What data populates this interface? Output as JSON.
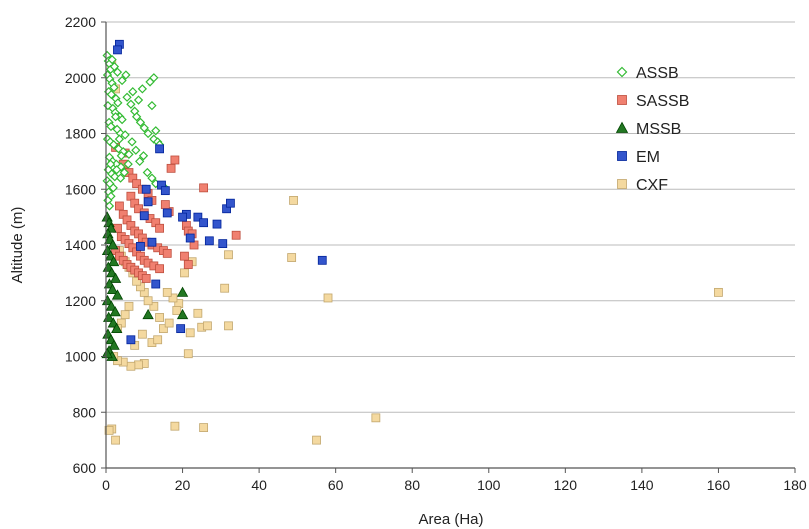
{
  "chart_data": {
    "type": "scatter",
    "title": "",
    "xlabel": "Area (Ha)",
    "ylabel": "Altitude (m)",
    "xlim": [
      0,
      180
    ],
    "ylim": [
      600,
      2200
    ],
    "xticks": [
      0,
      20,
      40,
      60,
      80,
      100,
      120,
      140,
      160,
      180
    ],
    "yticks": [
      600,
      800,
      1000,
      1200,
      1400,
      1600,
      1800,
      2000,
      2200
    ],
    "grid": "horizontal",
    "legend_position": "top-right",
    "series": [
      {
        "name": "ASSB",
        "marker": "diamond-open",
        "color": "#33bb33",
        "points": [
          [
            0.3,
            2080
          ],
          [
            0.6,
            2060
          ],
          [
            0.9,
            2050
          ],
          [
            1.2,
            2030
          ],
          [
            0.4,
            2010
          ],
          [
            1.0,
            1995
          ],
          [
            1.6,
            1980
          ],
          [
            2.1,
            1965
          ],
          [
            0.7,
            1950
          ],
          [
            1.4,
            1940
          ],
          [
            2.6,
            1925
          ],
          [
            3.1,
            1910
          ],
          [
            0.5,
            1900
          ],
          [
            1.8,
            1890
          ],
          [
            2.4,
            1875
          ],
          [
            3.6,
            1860
          ],
          [
            4.2,
            1850
          ],
          [
            0.8,
            1840
          ],
          [
            1.3,
            1825
          ],
          [
            2.9,
            1815
          ],
          [
            3.8,
            1800
          ],
          [
            5.0,
            1795
          ],
          [
            0.4,
            1780
          ],
          [
            1.1,
            1770
          ],
          [
            2.0,
            1760
          ],
          [
            3.3,
            1745
          ],
          [
            4.5,
            1735
          ],
          [
            6.0,
            1725
          ],
          [
            0.9,
            1715
          ],
          [
            1.7,
            1700
          ],
          [
            2.7,
            1690
          ],
          [
            3.9,
            1680
          ],
          [
            0.6,
            1670
          ],
          [
            1.5,
            1655
          ],
          [
            2.3,
            1645
          ],
          [
            0.3,
            1630
          ],
          [
            1.0,
            1620
          ],
          [
            1.9,
            1605
          ],
          [
            0.7,
            1590
          ],
          [
            1.3,
            1575
          ],
          [
            0.5,
            1560
          ],
          [
            0.9,
            1540
          ],
          [
            5.5,
            1930
          ],
          [
            6.5,
            1905
          ],
          [
            7.5,
            1880
          ],
          [
            8.0,
            1860
          ],
          [
            9.0,
            1840
          ],
          [
            10.0,
            1820
          ],
          [
            11.0,
            1800
          ],
          [
            12.5,
            1780
          ],
          [
            13.0,
            1810
          ],
          [
            13.5,
            1770
          ],
          [
            14.0,
            1760
          ],
          [
            12.0,
            1900
          ],
          [
            11.5,
            1985
          ],
          [
            12.5,
            2000
          ],
          [
            9.5,
            1960
          ],
          [
            8.5,
            1920
          ],
          [
            7.0,
            1950
          ],
          [
            6.8,
            1770
          ],
          [
            7.8,
            1740
          ],
          [
            8.8,
            1700
          ],
          [
            9.8,
            1720
          ],
          [
            10.8,
            1660
          ],
          [
            12.0,
            1640
          ],
          [
            13.0,
            1620
          ],
          [
            15.0,
            1610
          ],
          [
            5.8,
            1690
          ],
          [
            4.8,
            1660
          ],
          [
            3.8,
            1640
          ],
          [
            4.2,
            1990
          ],
          [
            5.2,
            2010
          ],
          [
            2.2,
            2040
          ],
          [
            1.6,
            2065
          ],
          [
            3.0,
            2020
          ],
          [
            2.5,
            1860
          ],
          [
            3.5,
            1780
          ],
          [
            4.0,
            1720
          ],
          [
            2.8,
            1670
          ],
          [
            1.2,
            1690
          ]
        ]
      },
      {
        "name": "SASSB",
        "marker": "square",
        "color": "#f08070",
        "points": [
          [
            2.5,
            1750
          ],
          [
            5.0,
            1730
          ],
          [
            18.0,
            1705
          ],
          [
            17.0,
            1675
          ],
          [
            25.5,
            1605
          ],
          [
            4.5,
            1690
          ],
          [
            6.0,
            1660
          ],
          [
            7.0,
            1640
          ],
          [
            8.0,
            1620
          ],
          [
            9.5,
            1600
          ],
          [
            11.0,
            1585
          ],
          [
            12.0,
            1560
          ],
          [
            6.5,
            1575
          ],
          [
            7.5,
            1550
          ],
          [
            8.5,
            1530
          ],
          [
            10.0,
            1515
          ],
          [
            11.5,
            1495
          ],
          [
            13.0,
            1480
          ],
          [
            14.0,
            1460
          ],
          [
            3.5,
            1540
          ],
          [
            4.5,
            1510
          ],
          [
            5.5,
            1490
          ],
          [
            6.5,
            1470
          ],
          [
            7.5,
            1450
          ],
          [
            8.5,
            1440
          ],
          [
            9.5,
            1425
          ],
          [
            10.5,
            1410
          ],
          [
            12.0,
            1400
          ],
          [
            13.5,
            1390
          ],
          [
            15.0,
            1380
          ],
          [
            16.0,
            1370
          ],
          [
            3.0,
            1460
          ],
          [
            4.0,
            1430
          ],
          [
            5.0,
            1420
          ],
          [
            6.0,
            1405
          ],
          [
            7.0,
            1390
          ],
          [
            8.0,
            1375
          ],
          [
            9.0,
            1360
          ],
          [
            10.0,
            1345
          ],
          [
            11.0,
            1335
          ],
          [
            12.5,
            1325
          ],
          [
            14.0,
            1315
          ],
          [
            2.5,
            1380
          ],
          [
            3.5,
            1360
          ],
          [
            4.5,
            1345
          ],
          [
            5.5,
            1330
          ],
          [
            6.5,
            1320
          ],
          [
            7.5,
            1310
          ],
          [
            8.5,
            1300
          ],
          [
            9.5,
            1290
          ],
          [
            10.5,
            1280
          ],
          [
            21.0,
            1470
          ],
          [
            21.5,
            1450
          ],
          [
            22.5,
            1440
          ],
          [
            34.0,
            1435
          ],
          [
            23.0,
            1400
          ],
          [
            20.5,
            1360
          ],
          [
            21.5,
            1330
          ],
          [
            16.5,
            1520
          ],
          [
            15.5,
            1545
          ]
        ]
      },
      {
        "name": "MSSB",
        "marker": "triangle",
        "color": "#227722",
        "points": [
          [
            0.3,
            1500
          ],
          [
            0.8,
            1480
          ],
          [
            1.3,
            1460
          ],
          [
            0.5,
            1440
          ],
          [
            1.0,
            1420
          ],
          [
            1.8,
            1400
          ],
          [
            0.4,
            1380
          ],
          [
            1.2,
            1360
          ],
          [
            2.0,
            1340
          ],
          [
            0.6,
            1320
          ],
          [
            1.5,
            1300
          ],
          [
            2.5,
            1280
          ],
          [
            0.9,
            1260
          ],
          [
            1.7,
            1240
          ],
          [
            3.0,
            1220
          ],
          [
            0.4,
            1200
          ],
          [
            1.4,
            1180
          ],
          [
            2.4,
            1160
          ],
          [
            0.7,
            1140
          ],
          [
            1.9,
            1120
          ],
          [
            2.8,
            1100
          ],
          [
            0.5,
            1080
          ],
          [
            1.3,
            1060
          ],
          [
            2.1,
            1040
          ],
          [
            0.8,
            1020
          ],
          [
            1.6,
            1000
          ],
          [
            0.3,
            1010
          ],
          [
            20.0,
            1230
          ],
          [
            11.0,
            1150
          ],
          [
            20.0,
            1150
          ]
        ]
      },
      {
        "name": "EM",
        "marker": "square",
        "color": "#3355cc",
        "points": [
          [
            3.5,
            2120
          ],
          [
            3.0,
            2100
          ],
          [
            14.0,
            1745
          ],
          [
            14.5,
            1615
          ],
          [
            15.5,
            1595
          ],
          [
            10.5,
            1600
          ],
          [
            11.0,
            1555
          ],
          [
            21.0,
            1510
          ],
          [
            20.0,
            1500
          ],
          [
            24.0,
            1500
          ],
          [
            25.5,
            1480
          ],
          [
            29.0,
            1475
          ],
          [
            31.5,
            1530
          ],
          [
            32.5,
            1550
          ],
          [
            10.0,
            1505
          ],
          [
            9.0,
            1395
          ],
          [
            12.0,
            1410
          ],
          [
            22.0,
            1425
          ],
          [
            27.0,
            1415
          ],
          [
            30.5,
            1405
          ],
          [
            56.5,
            1345
          ],
          [
            13.0,
            1260
          ],
          [
            19.5,
            1100
          ],
          [
            6.5,
            1060
          ],
          [
            16.0,
            1515
          ]
        ]
      },
      {
        "name": "CXF",
        "marker": "square",
        "color": "#f4d9a0",
        "points": [
          [
            49.0,
            1560
          ],
          [
            160.0,
            1230
          ],
          [
            70.5,
            780
          ],
          [
            55.0,
            700
          ],
          [
            58.0,
            1210
          ],
          [
            48.5,
            1355
          ],
          [
            32.0,
            1365
          ],
          [
            31.0,
            1245
          ],
          [
            32.0,
            1110
          ],
          [
            25.0,
            1105
          ],
          [
            26.5,
            1110
          ],
          [
            22.0,
            1085
          ],
          [
            21.5,
            1010
          ],
          [
            24.0,
            1155
          ],
          [
            18.0,
            750
          ],
          [
            25.5,
            745
          ],
          [
            1.5,
            740
          ],
          [
            0.8,
            735
          ],
          [
            2.5,
            700
          ],
          [
            10.0,
            975
          ],
          [
            8.5,
            970
          ],
          [
            6.5,
            965
          ],
          [
            4.5,
            980
          ],
          [
            3.0,
            985
          ],
          [
            2.0,
            1000
          ],
          [
            12.0,
            1050
          ],
          [
            13.5,
            1060
          ],
          [
            15.0,
            1100
          ],
          [
            16.5,
            1120
          ],
          [
            14.0,
            1140
          ],
          [
            12.5,
            1180
          ],
          [
            11.0,
            1200
          ],
          [
            10.0,
            1230
          ],
          [
            9.0,
            1250
          ],
          [
            8.0,
            1270
          ],
          [
            7.0,
            1300
          ],
          [
            6.0,
            1320
          ],
          [
            5.0,
            1340
          ],
          [
            4.0,
            1360
          ],
          [
            3.5,
            1380
          ],
          [
            19.0,
            1190
          ],
          [
            17.5,
            1210
          ],
          [
            16.0,
            1230
          ],
          [
            20.5,
            1300
          ],
          [
            22.5,
            1340
          ],
          [
            2.5,
            1960
          ],
          [
            1.5,
            2050
          ],
          [
            6.0,
            1180
          ],
          [
            5.0,
            1150
          ],
          [
            4.0,
            1120
          ],
          [
            3.0,
            1100
          ],
          [
            9.5,
            1080
          ],
          [
            7.5,
            1040
          ],
          [
            18.5,
            1165
          ]
        ]
      }
    ]
  }
}
